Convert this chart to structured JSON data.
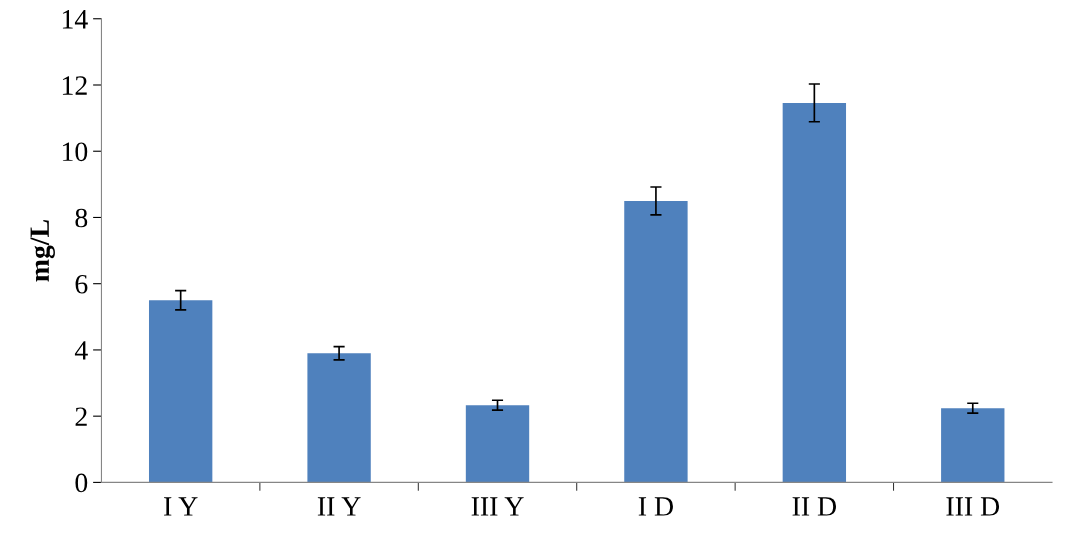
{
  "chart_data": {
    "type": "bar",
    "ylabel": "mg/L",
    "categories": [
      "I Y",
      "II Y",
      "III Y",
      "I D",
      "II D",
      "III D"
    ],
    "values": [
      5.5,
      3.9,
      2.33,
      8.5,
      11.46,
      2.24
    ],
    "errors": [
      0.29,
      0.2,
      0.15,
      0.42,
      0.57,
      0.15
    ],
    "color": "#4f81bd",
    "ylim": [
      0,
      14
    ],
    "yticks": [
      0,
      2,
      4,
      6,
      8,
      10,
      12,
      14
    ],
    "grid": false,
    "legend": false
  }
}
